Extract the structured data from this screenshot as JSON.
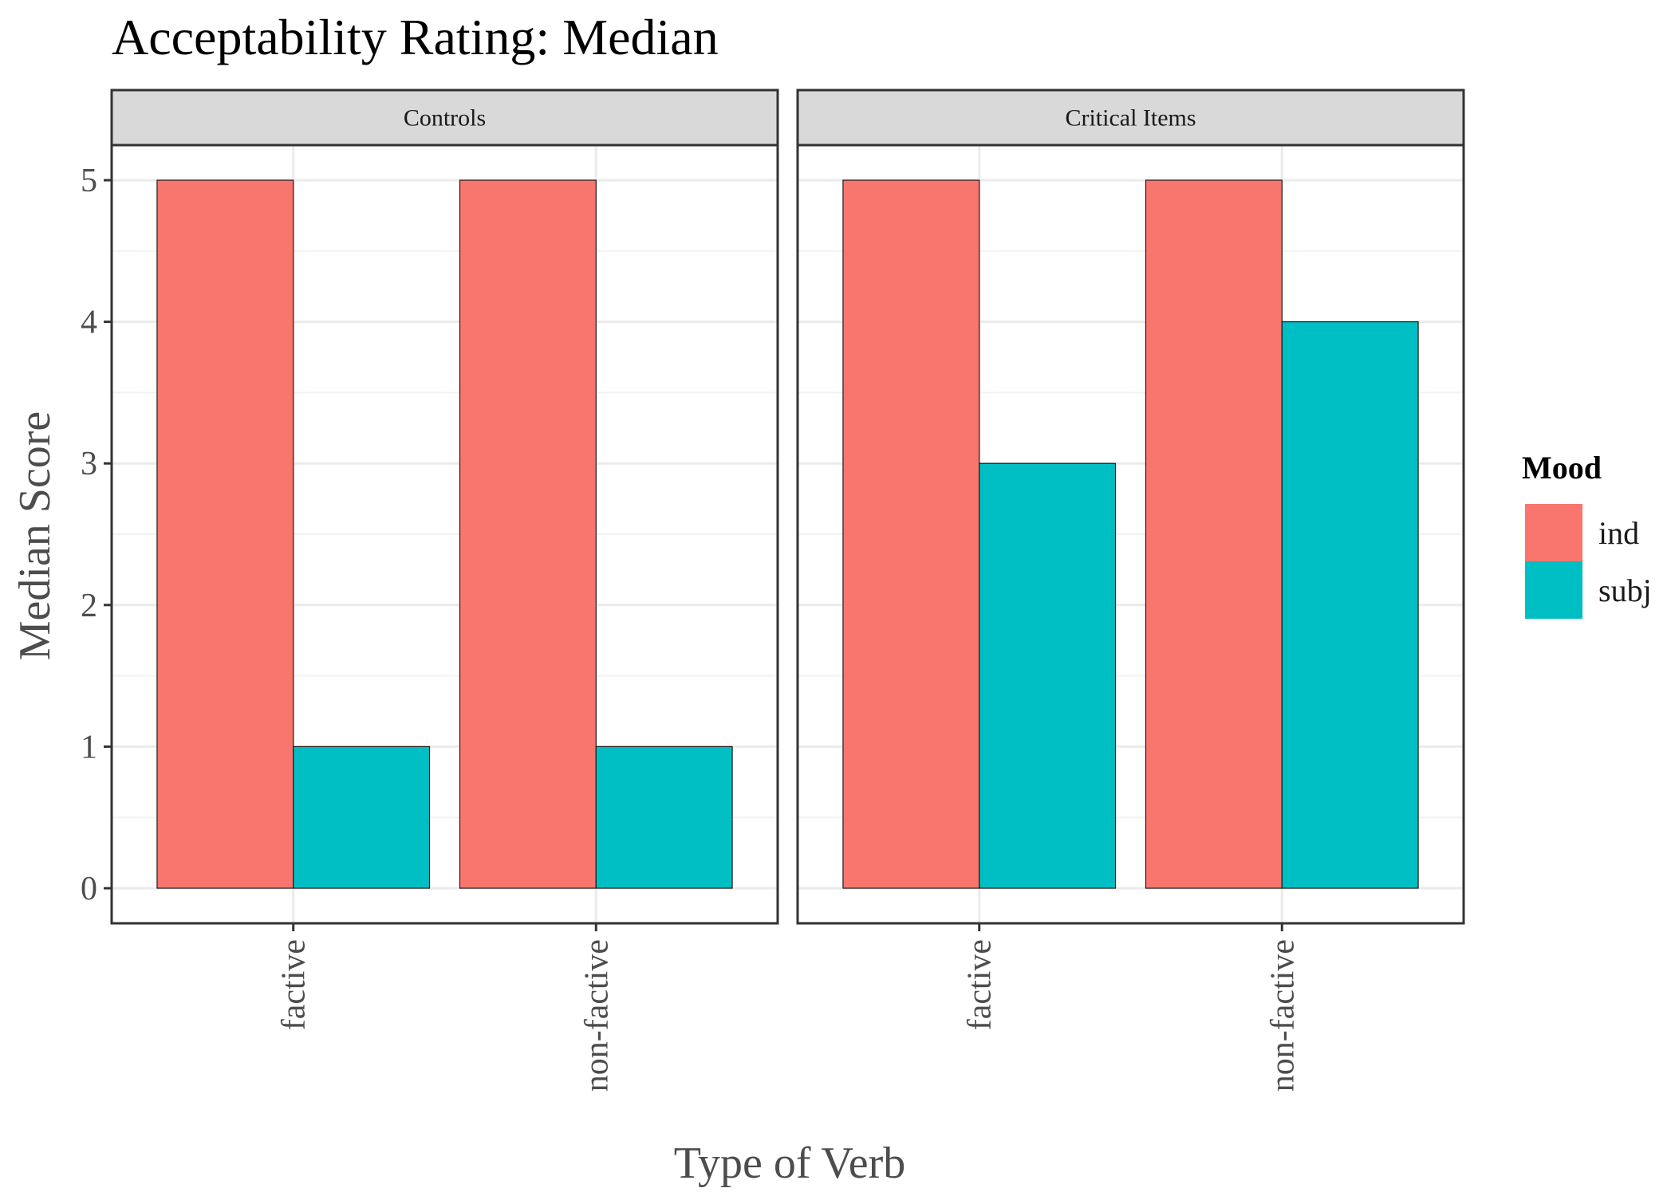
{
  "chart_data": {
    "type": "bar",
    "title": "Acceptability Rating: Median",
    "xlabel": "Type of Verb",
    "ylabel": "Median Score",
    "ylim": [
      0,
      5.25
    ],
    "yticks": [
      0,
      1,
      2,
      3,
      4,
      5
    ],
    "grid": true,
    "legend": {
      "title": "Mood",
      "position": "right",
      "entries": [
        {
          "name": "ind",
          "color": "#F8766D"
        },
        {
          "name": "subj",
          "color": "#00BFC4"
        }
      ]
    },
    "panels": [
      {
        "label": "Controls",
        "categories": [
          "factive",
          "non-factive"
        ],
        "series": [
          {
            "name": "ind",
            "values": [
              5,
              5
            ]
          },
          {
            "name": "subj",
            "values": [
              1,
              1
            ]
          }
        ]
      },
      {
        "label": "Critical Items",
        "categories": [
          "factive",
          "non-factive"
        ],
        "series": [
          {
            "name": "ind",
            "values": [
              5,
              5
            ]
          },
          {
            "name": "subj",
            "values": [
              3,
              4
            ]
          }
        ]
      }
    ]
  }
}
